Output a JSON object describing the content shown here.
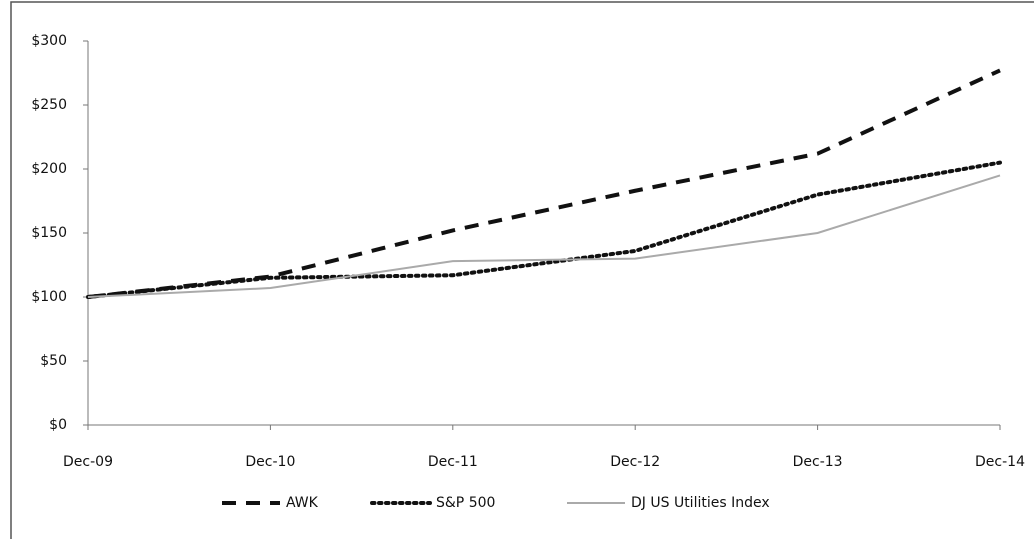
{
  "chart_data": {
    "type": "line",
    "categories": [
      "Dec-09",
      "Dec-10",
      "Dec-11",
      "Dec-12",
      "Dec-13",
      "Dec-14"
    ],
    "series": [
      {
        "name": "AWK",
        "color": "#111111",
        "style": "dashed",
        "values": [
          100,
          116,
          152,
          183,
          212,
          277
        ]
      },
      {
        "name": "S&P 500",
        "color": "#111111",
        "style": "dotted",
        "values": [
          100,
          115,
          117,
          136,
          180,
          205
        ]
      },
      {
        "name": "DJ US Utilities Index",
        "color": "#aaaaaa",
        "style": "solid",
        "values": [
          100,
          107,
          128,
          130,
          150,
          195
        ]
      }
    ],
    "ylim": [
      0,
      300
    ],
    "yticks": [
      {
        "value": 0,
        "label": "$0"
      },
      {
        "value": 50,
        "label": "$50"
      },
      {
        "value": 100,
        "label": "$100"
      },
      {
        "value": 150,
        "label": "$150"
      },
      {
        "value": 200,
        "label": "$200"
      },
      {
        "value": 250,
        "label": "$250"
      },
      {
        "value": 300,
        "label": "$300"
      }
    ],
    "legend": "bottom"
  }
}
